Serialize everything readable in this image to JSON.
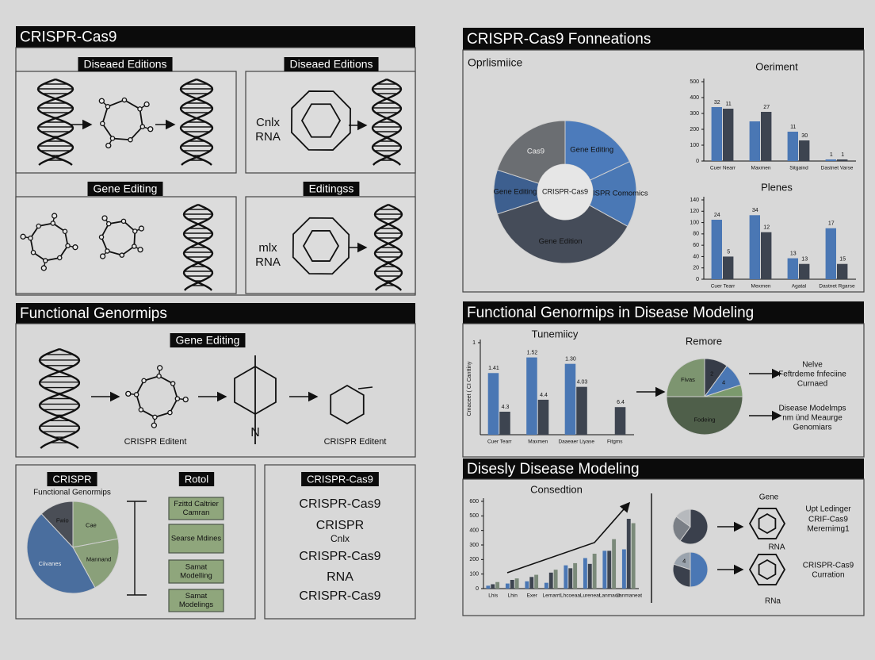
{
  "left_top": {
    "title": "CRISPR-Cas9",
    "cells": [
      {
        "label": "Diseaed Editions"
      },
      {
        "label": "Diseaed Editions",
        "lines": [
          "Cnlx",
          "RNA"
        ]
      },
      {
        "label": "Gene Editing"
      },
      {
        "label": "Editingss",
        "lines": [
          "mlx",
          "RNA"
        ]
      }
    ]
  },
  "left_middle": {
    "title": "Functional Genormips",
    "label": "Gene Editing",
    "captions": [
      "CRISPR Editent",
      "CRISPR Editent"
    ],
    "molecule_label": "N"
  },
  "left_bottom": {
    "label": "CRISPR",
    "right_label": "Rotol",
    "boxes": [
      [
        "Fzittd Caltrier",
        "Camran"
      ],
      [
        "Searse Mdines"
      ],
      [
        "Samat",
        "Modelling"
      ],
      [
        "Samat",
        "Modelings"
      ]
    ],
    "list_label": "CRISPR-Cas9",
    "list": [
      "CRISPR-Cas9",
      "CRISPR",
      "Cnlx",
      "CRISPR-Cas9",
      "RNA",
      "CRISPR-Cas9"
    ]
  },
  "right_top": {
    "title": "CRISPR-Cas9 Fonneations",
    "subtitle": "Oprlismiice"
  },
  "right_middle": {
    "title": "Functional Genormips in Disease Modeling",
    "notes": [
      [
        "Nelve",
        "Feftrdeme fnfeciine",
        "Curnaed"
      ],
      [
        "Disease Modelmps",
        "nm ünd Meaurge",
        "Genomiars"
      ]
    ]
  },
  "right_bottom": {
    "title": "Disesly Disease Modeling",
    "notes": [
      "Gene",
      "Upt Ledinger",
      "CRIF-Cas9",
      "Merernimg1",
      "RNA",
      "CRISPR-Cas9",
      "Curration",
      "RNa"
    ]
  },
  "chart_data": [
    {
      "type": "pie",
      "center_label": "CRISPR-Cas9",
      "categories": [
        "Gene Editing",
        "CRISPR Comomics",
        "Gene Edition",
        "Gene Editing",
        "Cas9"
      ],
      "values": [
        18,
        15,
        37,
        10,
        20
      ],
      "colors": [
        "#4c7bbb",
        "#4a78b5",
        "#454c59",
        "#3d5f8f",
        "#6b6e72"
      ]
    },
    {
      "type": "bar",
      "title": "Oeriment",
      "categories": [
        "Cuer Nearr",
        "Maxmen",
        "Sitgaind",
        "Dastnet Varse"
      ],
      "ylim": [
        0,
        500
      ],
      "yticks": [
        0,
        100,
        200,
        300,
        400,
        500
      ],
      "series": [
        {
          "color": "#4a77b4",
          "values": [
            340,
            250,
            185,
            10
          ],
          "notes": [
            "32",
            null,
            "11",
            "1"
          ]
        },
        {
          "color": "#3d4450",
          "values": [
            330,
            310,
            130,
            10
          ],
          "notes": [
            "11",
            "27",
            "30",
            "1"
          ]
        }
      ]
    },
    {
      "type": "bar",
      "title": "Plenes",
      "categories": [
        "Cuer Tearr",
        "Mexmen",
        "Agatal",
        "Dastnet Rgarse"
      ],
      "ylim": [
        0,
        140
      ],
      "yticks": [
        0,
        20,
        40,
        60,
        80,
        100,
        120,
        140
      ],
      "series": [
        {
          "color": "#4a77b4",
          "values": [
            105,
            113,
            37,
            90
          ],
          "notes": [
            "24",
            "34",
            "13",
            "17"
          ]
        },
        {
          "color": "#3d4450",
          "values": [
            40,
            83,
            27,
            27
          ],
          "notes": [
            "5",
            "12",
            "13",
            "15"
          ]
        }
      ]
    },
    {
      "type": "bar",
      "title": "Tunemiicy",
      "y_label": "Cmaceet ( CI Canttiny",
      "categories": [
        "Cuer Tearr",
        "Maxmen",
        "Daaeaer Liyase",
        "Fitgms"
      ],
      "ylim": [
        0,
        1
      ],
      "yticks": [
        1
      ],
      "series": [
        {
          "color": "#4a77b4",
          "values": [
            0.67,
            0.84,
            0.77,
            null
          ],
          "notes": [
            "1.41",
            "1.52",
            "1.30",
            null
          ]
        },
        {
          "color": "#3d4450",
          "values": [
            0.25,
            0.38,
            0.52,
            0.3
          ],
          "notes": [
            "4.3",
            "4.4",
            "4.03",
            "6.4"
          ]
        }
      ]
    },
    {
      "type": "pie",
      "title": "Remore",
      "categories": [
        "2",
        "4",
        null,
        "Fodeing",
        "Fivas"
      ],
      "values": [
        10,
        10,
        5,
        50,
        25
      ],
      "colors": [
        "#363c48",
        "#4a77b4",
        "#7b9a6d",
        "#4f5f4a",
        "#7d9570"
      ]
    },
    {
      "type": "bar",
      "title": "Consedtion",
      "categories": [
        "Lhis",
        "Lhin",
        "Exer",
        "Lemarrt",
        "Lhcoeaal",
        "Lureneat",
        "Lanmaolt",
        "Lanmaneat"
      ],
      "ylim": [
        0,
        600
      ],
      "yticks": [
        0,
        100,
        200,
        300,
        400,
        500,
        600
      ],
      "series": [
        {
          "color": "#4a77b4",
          "values": [
            20,
            35,
            50,
            40,
            160,
            210,
            260,
            270
          ]
        },
        {
          "color": "#3d4450",
          "values": [
            30,
            60,
            80,
            110,
            140,
            170,
            260,
            480
          ]
        },
        {
          "color": "#7b8a7a",
          "values": [
            45,
            70,
            95,
            130,
            175,
            240,
            340,
            450
          ]
        }
      ]
    },
    {
      "type": "pie",
      "categories": [
        null,
        null,
        null
      ],
      "values": [
        60,
        25,
        15
      ],
      "colors": [
        "#3a404c",
        "#7a7f86",
        "#b6b9bd"
      ]
    },
    {
      "type": "pie",
      "categories": [
        null,
        null,
        "4"
      ],
      "values": [
        50,
        30,
        20
      ],
      "colors": [
        "#4a77b4",
        "#3a404c",
        "#9aa3ad"
      ]
    },
    {
      "type": "pie",
      "title": "Functional Genormips",
      "categories": [
        "Cae",
        "Mannand",
        "Ciivanes",
        "Fwio"
      ],
      "values": [
        22,
        20,
        46,
        12
      ],
      "colors": [
        "#8ca37c",
        "#8aa07a",
        "#4a6e9e",
        "#4a4e56"
      ]
    }
  ]
}
